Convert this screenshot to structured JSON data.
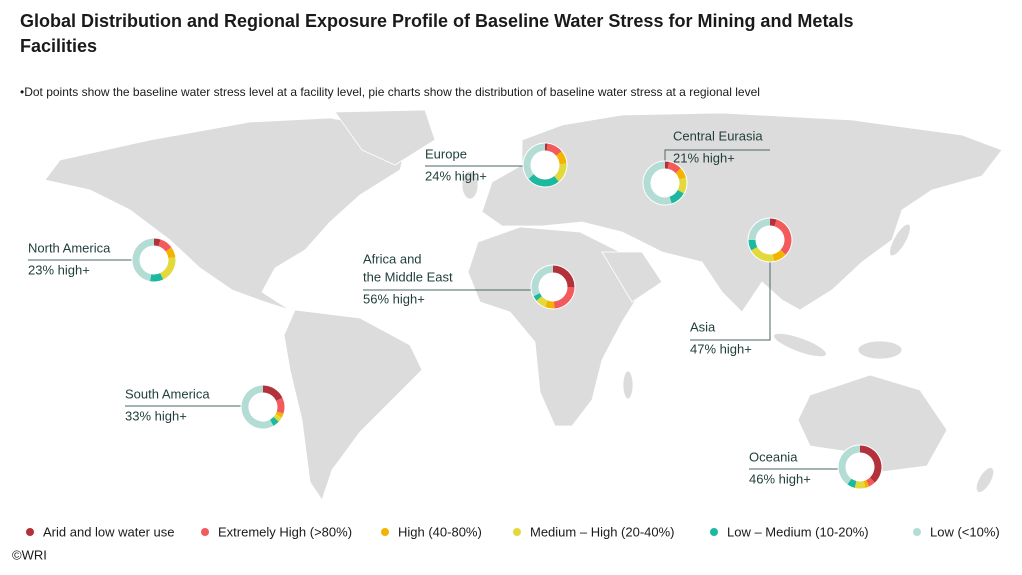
{
  "header": {
    "title_lines": [
      "Global Distribution and Regional Exposure Profile of Baseline Water Stress for Mining and Metals",
      "Facilities"
    ],
    "subtitle": "•Dot points show the baseline water stress level at a facility level, pie charts show the distribution of baseline water stress at a regional level"
  },
  "legend": [
    {
      "name": "Arid and low water use",
      "color": "#b3313a"
    },
    {
      "name": "Extremely High (>80%)",
      "color": "#f25a5c"
    },
    {
      "name": "High (40-80%)",
      "color": "#f2b400"
    },
    {
      "name": "Medium – High (20-40%)",
      "color": "#e3d83c"
    },
    {
      "name": "Low – Medium (10-20%)",
      "color": "#1db8a0"
    },
    {
      "name": "Low (<10%)",
      "color": "#b3ddd4"
    }
  ],
  "regions": [
    {
      "name_lines": [
        "North America"
      ],
      "label": "23% high+",
      "values": [
        5,
        10,
        8,
        20,
        10,
        47
      ]
    },
    {
      "name_lines": [
        "Europe"
      ],
      "label": "24% high+",
      "values": [
        2,
        12,
        10,
        15,
        25,
        36
      ]
    },
    {
      "name_lines": [
        "Central Eurasia"
      ],
      "label": "21% high+",
      "values": [
        3,
        10,
        8,
        12,
        12,
        55
      ]
    },
    {
      "name_lines": [
        "Africa and",
        "the Middle East"
      ],
      "label": "56% high+",
      "values": [
        25,
        24,
        7,
        8,
        4,
        32
      ]
    },
    {
      "name_lines": [
        "Asia"
      ],
      "label": "47% high+",
      "values": [
        5,
        32,
        10,
        20,
        8,
        25
      ]
    },
    {
      "name_lines": [
        "South America"
      ],
      "label": "33% high+",
      "values": [
        18,
        12,
        3,
        4,
        5,
        58
      ]
    },
    {
      "name_lines": [
        "Oceania"
      ],
      "label": "46% high+",
      "values": [
        38,
        5,
        3,
        8,
        6,
        40
      ]
    }
  ],
  "credit": "©WRI"
}
